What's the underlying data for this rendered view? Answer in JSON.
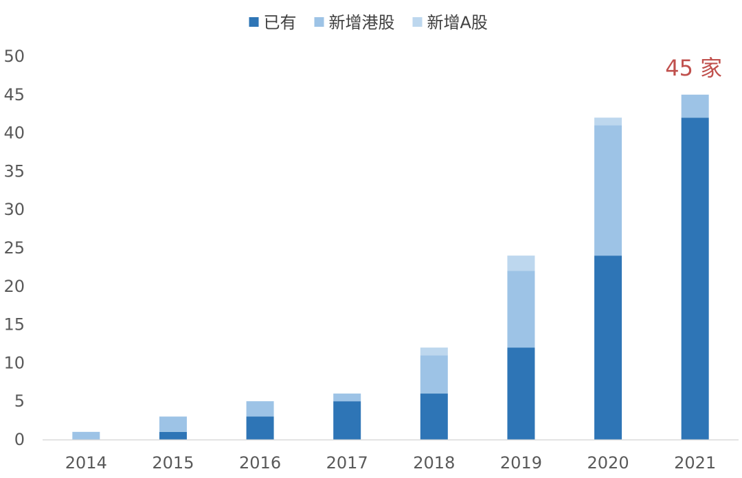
{
  "chart_data": {
    "type": "bar",
    "stacked": true,
    "categories": [
      "2014",
      "2015",
      "2016",
      "2017",
      "2018",
      "2019",
      "2020",
      "2021"
    ],
    "series": [
      {
        "name": "已有",
        "values": [
          0,
          1,
          3,
          5,
          6,
          12,
          24,
          42
        ],
        "color": "#2e75b6"
      },
      {
        "name": "新增港股",
        "values": [
          1,
          2,
          2,
          1,
          5,
          10,
          17,
          3
        ],
        "color": "#9dc3e6"
      },
      {
        "name": "新增A股",
        "values": [
          0,
          0,
          0,
          0,
          1,
          2,
          1,
          0
        ],
        "color": "#bdd7ee"
      }
    ],
    "ylim": [
      0,
      50
    ],
    "yticks": [
      0,
      5,
      10,
      15,
      20,
      25,
      30,
      35,
      40,
      45,
      50
    ],
    "grid": false,
    "legend": "top-center",
    "annotation": {
      "text": "45 家",
      "category": "2021"
    }
  }
}
